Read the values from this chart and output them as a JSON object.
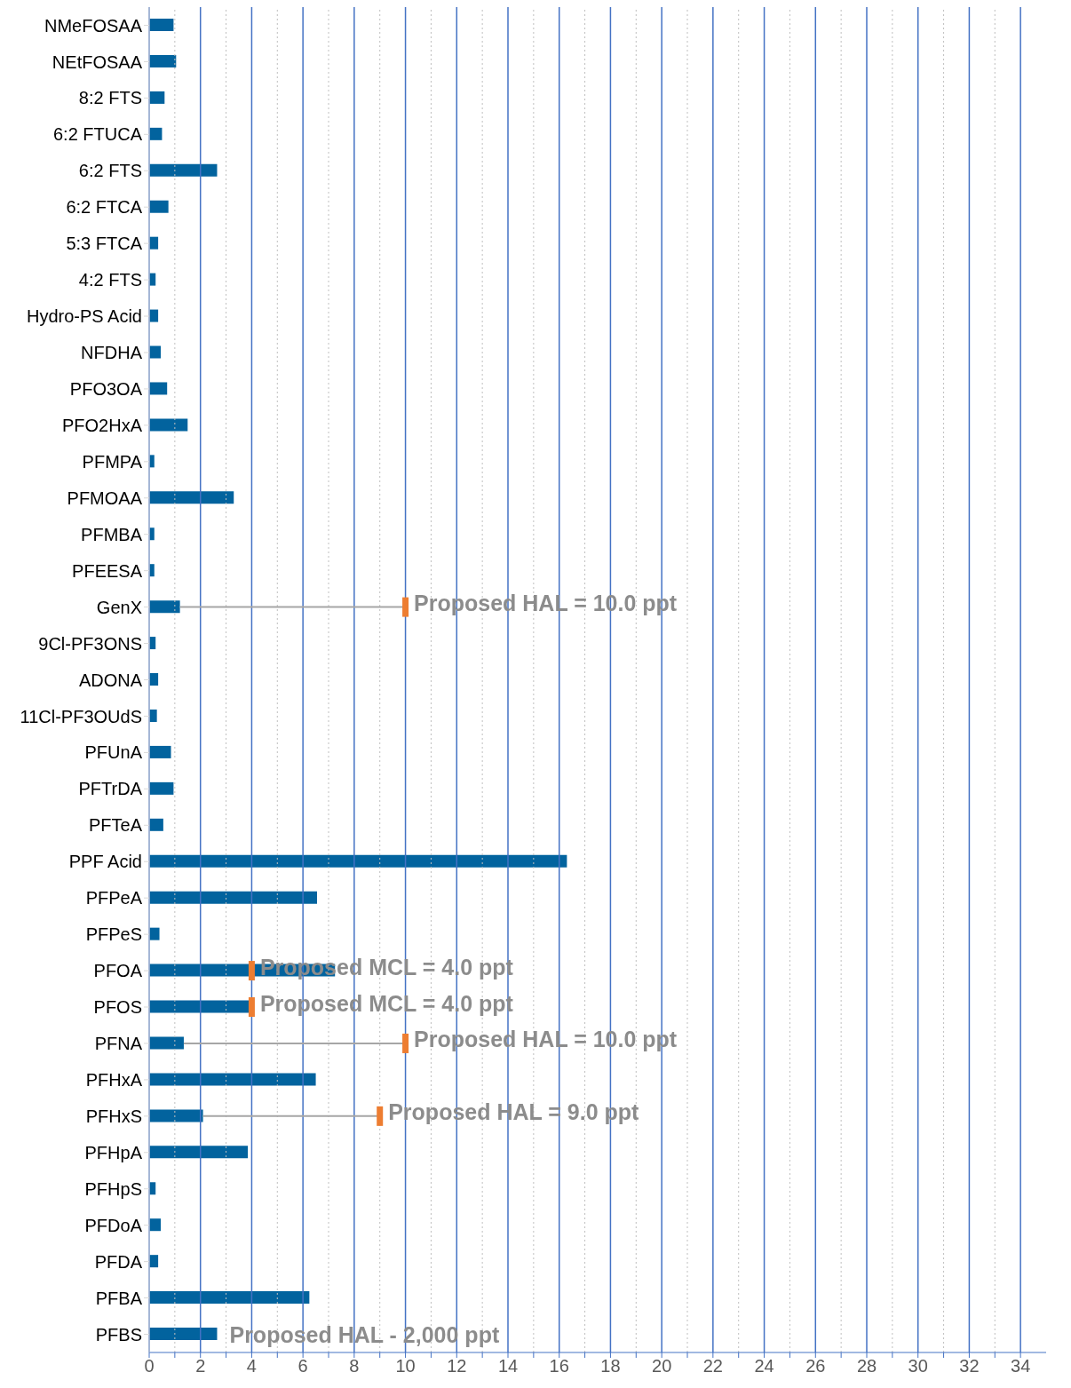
{
  "chart_data": {
    "type": "bar",
    "orientation": "horizontal",
    "categories": [
      "NMeFOSAA",
      "NEtFOSAA",
      "8:2 FTS",
      "6:2 FTUCA",
      "6:2 FTS",
      "6:2 FTCA",
      "5:3 FTCA",
      "4:2 FTS",
      "Hydro-PS Acid",
      "NFDHA",
      "PFO3OA",
      "PFO2HxA",
      "PFMPA",
      "PFMOAA",
      "PFMBA",
      "PFEESA",
      "GenX",
      "9Cl-PF3ONS",
      "ADONA",
      "11Cl-PF3OUdS",
      "PFUnA",
      "PFTrDA",
      "PFTeA",
      "PPF Acid",
      "PFPeA",
      "PFPeS",
      "PFOA",
      "PFOS",
      "PFNA",
      "PFHxA",
      "PFHxS",
      "PFHpA",
      "PFHpS",
      "PFDoA",
      "PFDA",
      "PFBA",
      "PFBS"
    ],
    "series": [
      {
        "color": "#02639e",
        "values": [
          0.95,
          1.05,
          0.6,
          0.5,
          2.65,
          0.75,
          0.35,
          0.25,
          0.35,
          0.45,
          0.7,
          1.5,
          0.2,
          3.3,
          0.2,
          0.2,
          1.2,
          0.25,
          0.35,
          0.3,
          0.85,
          0.95,
          0.55,
          16.3,
          6.55,
          0.4,
          7.25,
          3.95,
          1.35,
          6.5,
          2.1,
          3.85,
          0.25,
          0.45,
          0.35,
          6.25,
          2.65
        ]
      },
      {
        "type": "scatter",
        "color": "#ed7d31",
        "x": [
          "GenX",
          "PFOA",
          "PFOS",
          "PFNA",
          "PFHxS"
        ],
        "values": [
          10,
          4,
          4,
          10,
          9
        ],
        "value_labels": [
          "Proposed HAL = 10.0 ppt",
          "Proposed MCL = 4.0 ppt",
          "Proposed MCL =  4.0 ppt",
          "Proposed HAL = 10.0 ppt",
          "Proposed HAL = 9.0 ppt"
        ]
      }
    ],
    "xlim": [
      0,
      35
    ],
    "xticks": [
      0,
      {
        "value": 1,
        "label": null
      },
      2,
      {
        "value": 3,
        "label": null
      },
      4,
      {
        "value": 5,
        "label": null
      },
      6,
      {
        "value": 7,
        "label": null
      },
      8,
      {
        "value": 9,
        "label": null
      },
      10,
      {
        "value": 11,
        "label": null
      },
      12,
      {
        "value": 13,
        "label": null
      },
      14,
      {
        "value": 15,
        "label": null
      },
      16,
      {
        "value": 17,
        "label": null
      },
      18,
      {
        "value": 19,
        "label": null
      },
      20,
      {
        "value": 21,
        "label": null
      },
      22,
      {
        "value": 23,
        "label": null
      },
      24,
      {
        "value": 25,
        "label": null
      },
      26,
      {
        "value": 27,
        "label": null
      },
      28,
      {
        "value": 29,
        "label": null
      },
      30,
      {
        "value": 31,
        "label": null
      },
      32,
      {
        "value": 33,
        "label": null
      },
      34
    ],
    "grid": "x",
    "annotations": [
      {
        "text": "Proposed HAL - 2,000 ppt",
        "x": 2.65,
        "y": "PFBS"
      }
    ]
  }
}
